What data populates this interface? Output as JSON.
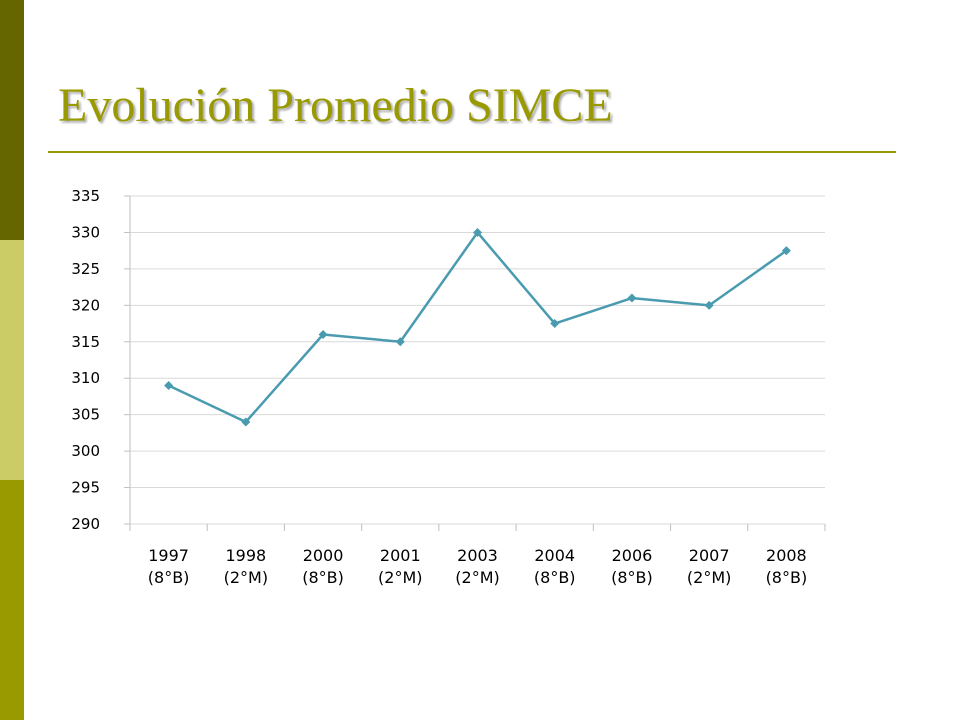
{
  "slide": {
    "title": "Evolución Promedio SIMCE",
    "colors": {
      "sidebar_dark": "#666600",
      "sidebar_light": "#cccc66",
      "sidebar_mid": "#999900",
      "title": "#999900",
      "rule": "#999900"
    }
  },
  "chart_data": {
    "type": "line",
    "title": "",
    "xlabel": "",
    "ylabel": "",
    "categories": [
      [
        "1997",
        "(8°B)"
      ],
      [
        "1998",
        "(2°M)"
      ],
      [
        "2000",
        "(8°B)"
      ],
      [
        "2001",
        "(2°M)"
      ],
      [
        "2003",
        "(2°M)"
      ],
      [
        "2004",
        "(8°B)"
      ],
      [
        "2006",
        "(8°B)"
      ],
      [
        "2007",
        "(2°M)"
      ],
      [
        "2008",
        "(8°B)"
      ]
    ],
    "series": [
      {
        "values": [
          309,
          304,
          316,
          315,
          330,
          317.5,
          321,
          320,
          327.5
        ],
        "color": "#4a9bb0",
        "marker": "diamond"
      }
    ],
    "ylim": [
      290,
      335
    ],
    "yticks": [
      290,
      295,
      300,
      305,
      310,
      315,
      320,
      325,
      330,
      335
    ],
    "grid": true,
    "legend": "none"
  }
}
